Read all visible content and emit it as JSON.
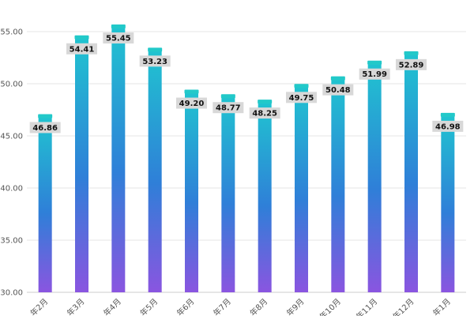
{
  "chart_data": {
    "type": "bar",
    "categories": [
      "年2月",
      "年3月",
      "年4月",
      "年5月",
      "年6月",
      "年7月",
      "年8月",
      "年9月",
      "年10月",
      "年11月",
      "年12月",
      "年1月"
    ],
    "values": [
      46.86,
      54.41,
      55.45,
      53.23,
      49.2,
      48.77,
      48.25,
      49.75,
      50.48,
      51.99,
      52.89,
      46.98
    ],
    "data_labels": [
      "46.86",
      "54.41",
      "55.45",
      "53.23",
      "49.20",
      "48.77",
      "48.25",
      "49.75",
      "50.48",
      "51.99",
      "52.89",
      "46.98"
    ],
    "ylim": [
      30,
      55
    ],
    "yticks": [
      30,
      35,
      40,
      45,
      50,
      55
    ],
    "ytick_labels": [
      "30.00",
      "35.00",
      "40.00",
      "45.00",
      "50.00",
      "55.00"
    ],
    "grid": true,
    "legend": "none"
  },
  "colors": {
    "bar_top": "#20c4d0",
    "bar_middle": "#2f7fd8",
    "bar_bottom": "#8a55e0",
    "cap": "#22c9c9",
    "label_bg": "#d8d8d8",
    "grid": "#e6e6e6"
  }
}
